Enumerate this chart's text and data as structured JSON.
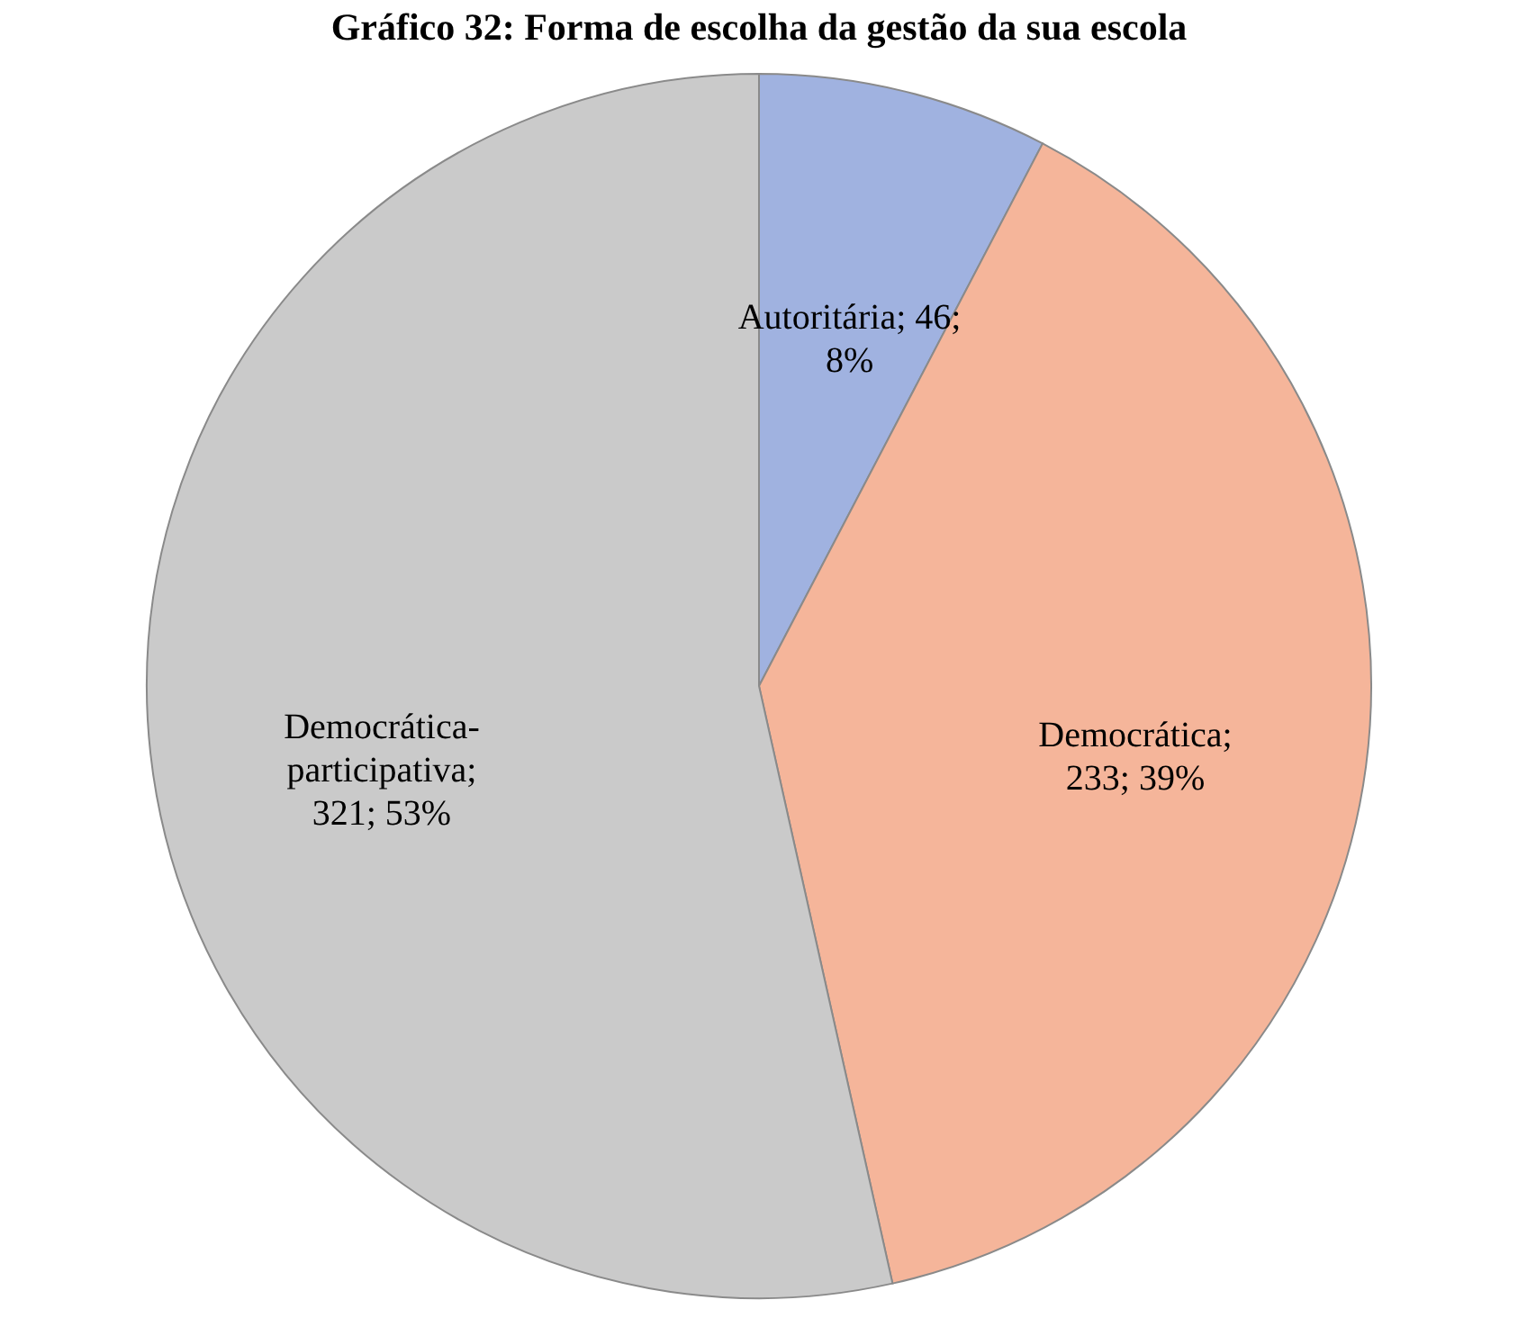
{
  "chart_data": {
    "type": "pie",
    "title": "Gráfico 32: Forma de escolha da gestão da sua escola",
    "categories": [
      "Autoritária",
      "Democrática",
      "Democrática-participativa"
    ],
    "values": [
      46,
      233,
      321
    ],
    "colors": [
      "#a0b2e0",
      "#f5b59a",
      "#cacaca"
    ],
    "value_labels": [
      "; 46; 8%",
      "; 233; 39%",
      "; 321; 53%"
    ],
    "legend": false
  }
}
